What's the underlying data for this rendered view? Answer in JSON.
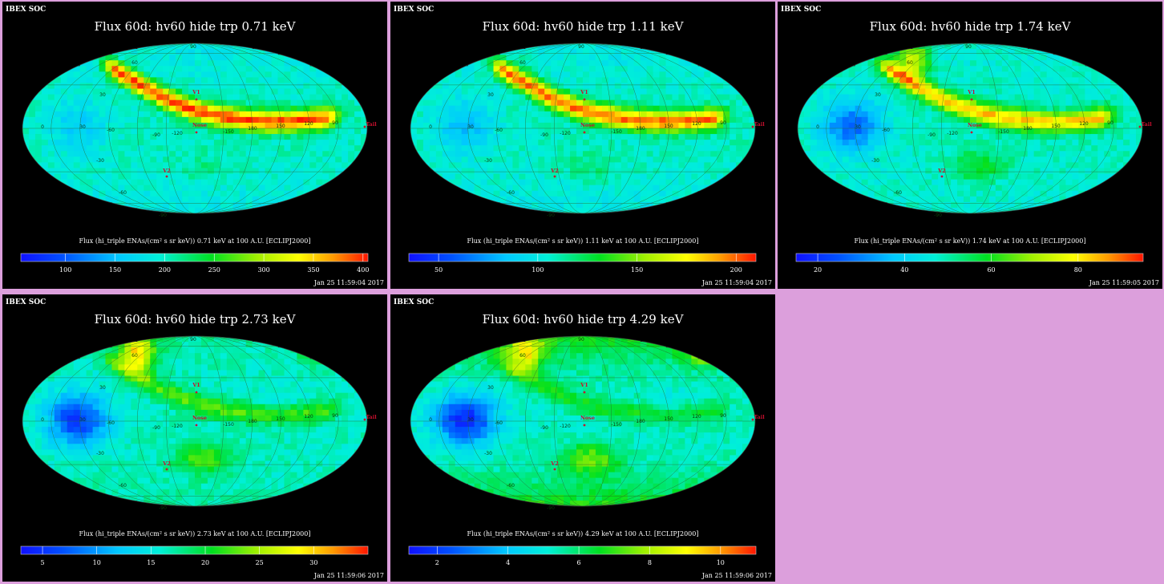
{
  "page": {
    "background": "#dc9fdc"
  },
  "shared": {
    "header": "IBEX SOC",
    "grid_labels": {
      "lon": [
        "0",
        "30",
        "-60",
        "-90",
        "-120",
        "-150",
        "180",
        "150",
        "120",
        "90",
        "60",
        "30"
      ],
      "lat": [
        "60",
        "30",
        "-30",
        "-60",
        "90",
        "-90"
      ]
    },
    "markers": {
      "nose": "Nose",
      "tail": "Tail",
      "v1": "V1",
      "v2": "V2"
    }
  },
  "chart_data": [
    {
      "type": "heatmap",
      "title": "Flux 60d: hv60 hide trp 0.71 keV",
      "colorbar_label": "Flux (hi_triple ENAs/(cm² s sr keV)) 0.71 keV at 100 A.U. [ECLIPJ2000]",
      "colorbar_ticks": [
        100,
        150,
        200,
        250,
        300,
        350,
        400
      ],
      "colorbar_range": [
        55,
        405
      ],
      "timestamp": "Jan 25 11:59:04 2017",
      "projection": "mollweide",
      "features": {
        "ribbon": 1.0,
        "pole": 0.05,
        "tail_lobe": 0.0,
        "high_lat": 0.0
      }
    },
    {
      "type": "heatmap",
      "title": "Flux 60d: hv60 hide trp 1.11 keV",
      "colorbar_label": "Flux (hi_triple ENAs/(cm² s sr keV)) 1.11 keV at 100 A.U. [ECLIPJ2000]",
      "colorbar_ticks": [
        50,
        100,
        150,
        200
      ],
      "colorbar_range": [
        35,
        210
      ],
      "timestamp": "Jan 25 11:59:04 2017",
      "projection": "mollweide",
      "features": {
        "ribbon": 0.95,
        "pole": 0.1,
        "tail_lobe": 0.1,
        "high_lat": 0.0
      }
    },
    {
      "type": "heatmap",
      "title": "Flux 60d: hv60 hide trp 1.74 keV",
      "colorbar_label": "Flux (hi_triple ENAs/(cm² s sr keV)) 1.74 keV at 100 A.U. [ECLIPJ2000]",
      "colorbar_ticks": [
        20,
        40,
        60,
        80
      ],
      "colorbar_range": [
        15,
        95
      ],
      "timestamp": "Jan 25 11:59:05 2017",
      "projection": "mollweide",
      "features": {
        "ribbon": 0.8,
        "pole": 0.6,
        "tail_lobe": 0.5,
        "high_lat": 0.1
      }
    },
    {
      "type": "heatmap",
      "title": "Flux 60d: hv60 hide trp 2.73 keV",
      "colorbar_label": "Flux (hi_triple ENAs/(cm² s sr keV)) 2.73 keV at 100 A.U. [ECLIPJ2000]",
      "colorbar_ticks": [
        5,
        10,
        15,
        20,
        25,
        30
      ],
      "colorbar_range": [
        3,
        35
      ],
      "timestamp": "Jan 25 11:59:06 2017",
      "projection": "mollweide",
      "features": {
        "ribbon": 0.35,
        "pole": 0.75,
        "tail_lobe": 0.75,
        "high_lat": 0.25
      }
    },
    {
      "type": "heatmap",
      "title": "Flux 60d: hv60 hide trp 4.29 keV",
      "colorbar_label": "Flux (hi_triple ENAs/(cm² s sr keV)) 4.29 keV at 100 A.U. [ECLIPJ2000]",
      "colorbar_ticks": [
        2,
        4,
        6,
        8,
        10
      ],
      "colorbar_range": [
        1.2,
        11
      ],
      "timestamp": "Jan 25 11:59:06 2017",
      "projection": "mollweide",
      "features": {
        "ribbon": 0.25,
        "pole": 0.6,
        "tail_lobe": 0.85,
        "high_lat": 0.6
      }
    }
  ]
}
